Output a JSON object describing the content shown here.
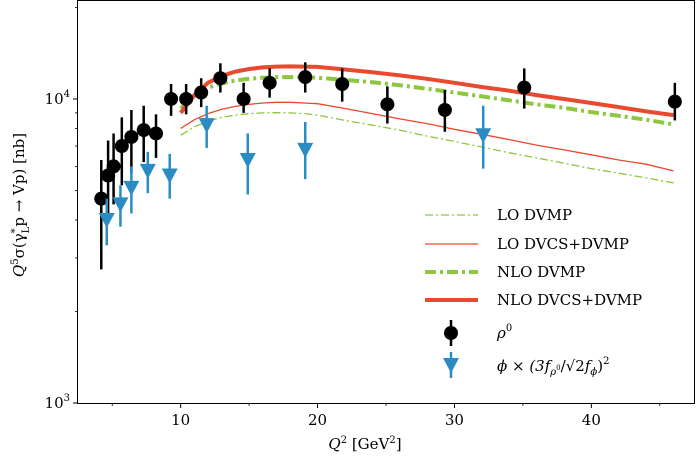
{
  "chart_data": {
    "type": "line",
    "title": "",
    "xlabel_parts": [
      "Q",
      "2",
      " [GeV",
      "2",
      "]"
    ],
    "ylabel_parts": [
      "Q",
      "5",
      "σ(γ",
      "*",
      "L",
      "p → Vp) [nb]"
    ],
    "xlim": [
      2.5,
      47.5
    ],
    "ylim": [
      1000,
      21000
    ],
    "yscale": "log",
    "grid": false,
    "legend_position": "lower-right",
    "x_ticks": [
      10,
      20,
      30,
      40
    ],
    "x_tick_labels": [
      "10",
      "20",
      "30",
      "40"
    ],
    "y_ticks": [
      1000,
      10000
    ],
    "y_tick_labels": [
      [
        "10",
        "3"
      ],
      [
        "10",
        "4"
      ]
    ],
    "series": [
      {
        "name": "LO DVMP",
        "kind": "line",
        "color": "#8dc63f",
        "style": "dashdot-thin",
        "x": [
          10,
          11,
          12,
          13,
          14,
          15,
          16,
          17,
          18,
          19,
          20,
          22,
          24,
          26,
          28,
          30,
          32,
          34,
          36,
          38,
          40,
          42,
          44,
          46
        ],
        "y": [
          7600,
          8100,
          8450,
          8700,
          8850,
          8950,
          9000,
          9020,
          9000,
          8950,
          8850,
          8500,
          8200,
          7900,
          7550,
          7250,
          6950,
          6650,
          6400,
          6150,
          5900,
          5700,
          5500,
          5300
        ]
      },
      {
        "name": "LO DVCS+DVMP",
        "kind": "line",
        "color": "#e8492f",
        "style": "solid-thin",
        "x": [
          10,
          11,
          12,
          13,
          14,
          15,
          16,
          17,
          18,
          19,
          20,
          22,
          24,
          26,
          28,
          30,
          32,
          34,
          36,
          38,
          40,
          42,
          44,
          46
        ],
        "y": [
          8000,
          8550,
          8950,
          9250,
          9450,
          9600,
          9700,
          9750,
          9750,
          9700,
          9650,
          9300,
          8950,
          8600,
          8300,
          7950,
          7650,
          7350,
          7050,
          6800,
          6550,
          6300,
          6100,
          5800
        ]
      },
      {
        "name": "NLO DVMP",
        "kind": "line",
        "color": "#8dc63f",
        "style": "dashdot-thick",
        "x": [
          10,
          11,
          12,
          13,
          14,
          15,
          16,
          17,
          18,
          19,
          20,
          22,
          24,
          26,
          28,
          30,
          32,
          34,
          36,
          38,
          40,
          42,
          44,
          46
        ],
        "y": [
          9300,
          10300,
          10900,
          11250,
          11500,
          11650,
          11750,
          11800,
          11800,
          11780,
          11750,
          11550,
          11350,
          11100,
          10800,
          10500,
          10200,
          9900,
          9600,
          9350,
          9050,
          8800,
          8550,
          8250
        ]
      },
      {
        "name": "NLO DVCS+DVMP",
        "kind": "line",
        "color": "#e8492f",
        "style": "solid-thick",
        "x": [
          10,
          11,
          12,
          13,
          14,
          15,
          16,
          17,
          18,
          19,
          20,
          22,
          24,
          26,
          28,
          30,
          32,
          34,
          36,
          38,
          40,
          42,
          44,
          46
        ],
        "y": [
          9000,
          10300,
          11300,
          11900,
          12300,
          12550,
          12700,
          12780,
          12800,
          12780,
          12750,
          12500,
          12250,
          11950,
          11650,
          11300,
          10950,
          10650,
          10300,
          10000,
          9700,
          9400,
          9100,
          8850
        ]
      },
      {
        "name": "ρ",
        "name_sup": "0",
        "kind": "points",
        "marker": "circle",
        "color": "#000000",
        "x": [
          4.2,
          4.7,
          5.1,
          5.7,
          6.4,
          7.3,
          8.2,
          9.3,
          10.4,
          11.5,
          12.9,
          14.6,
          16.5,
          19.1,
          21.8,
          25.1,
          29.3,
          35.1,
          46.1
        ],
        "y": [
          4700,
          5600,
          6000,
          7000,
          7500,
          7900,
          7700,
          10000,
          10000,
          10500,
          11700,
          10000,
          11300,
          11800,
          11200,
          9600,
          9200,
          10900,
          9800
        ],
        "ylow": [
          2750,
          3900,
          4500,
          5200,
          5700,
          6200,
          6400,
          8800,
          8900,
          9400,
          10500,
          9000,
          10100,
          10500,
          9800,
          8300,
          7800,
          9300,
          8500
        ],
        "yhigh": [
          6300,
          7300,
          7700,
          8700,
          9200,
          9500,
          8900,
          11200,
          11200,
          11700,
          13100,
          11300,
          12600,
          13200,
          12600,
          11000,
          10700,
          12600,
          11300
        ]
      },
      {
        "name": "ϕ × (3f",
        "name_parts": [
          "ϕ × (3f",
          "ρ",
          "0",
          "/",
          "√2",
          "f",
          "ϕ",
          ")",
          "2"
        ],
        "kind": "points",
        "marker": "triangle-down",
        "color": "#2b8cc4",
        "x": [
          4.6,
          5.6,
          6.4,
          7.6,
          9.2,
          11.9,
          14.9,
          19.1,
          32.1
        ],
        "y": [
          4000,
          4500,
          5100,
          5800,
          5600,
          8200,
          6300,
          6800,
          7600
        ],
        "ylow": [
          3300,
          3800,
          4200,
          4900,
          4700,
          6900,
          4850,
          5450,
          5900
        ],
        "yhigh": [
          4700,
          5200,
          6000,
          6700,
          6600,
          9500,
          7700,
          8400,
          9500
        ]
      }
    ]
  }
}
